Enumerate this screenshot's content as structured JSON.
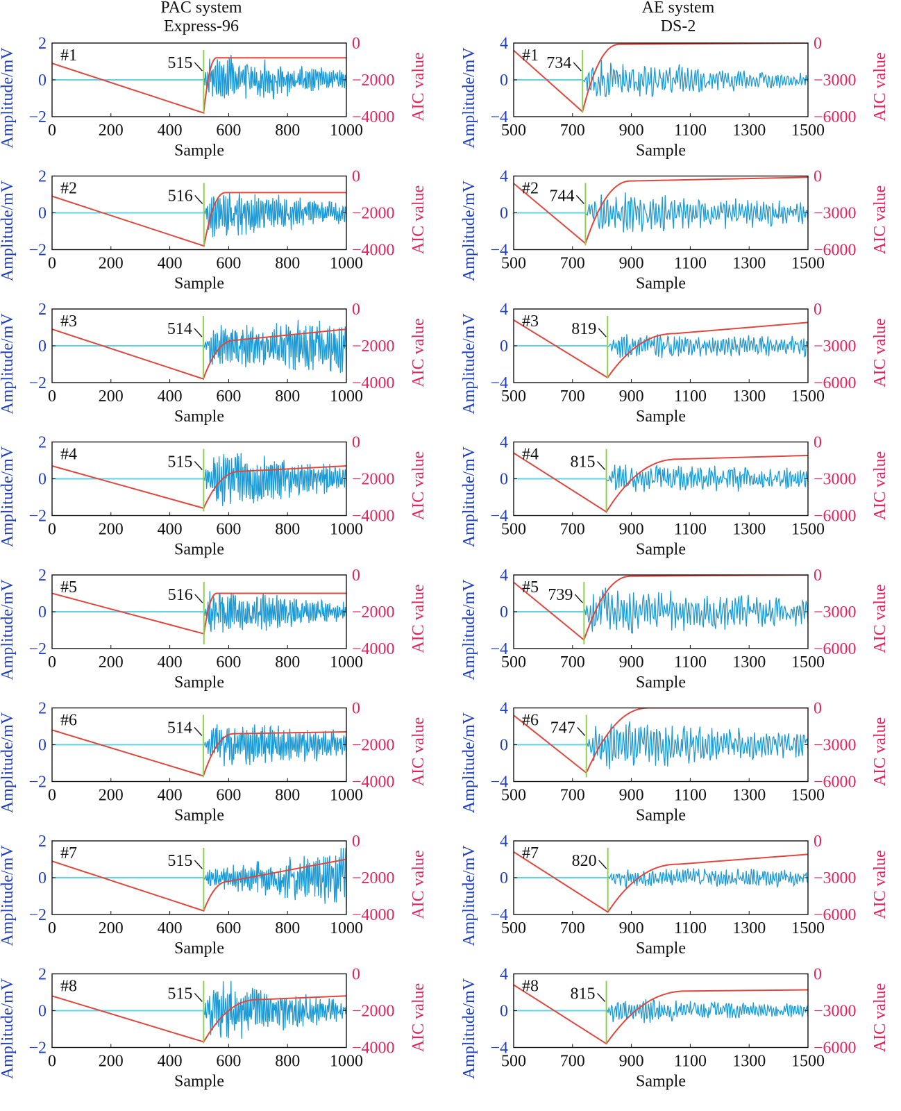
{
  "columns": [
    {
      "title_line1": "PAC system",
      "title_line2": "Express-96"
    },
    {
      "title_line1": "AE system",
      "title_line2": "DS-2"
    }
  ],
  "colors": {
    "signal": "#1b9ad6",
    "baseline": "#5fd3e6",
    "aic": "#e0463c",
    "marker": "#8fd14f",
    "left_axis": "#1f3fbf",
    "right_axis": "#e0245e"
  },
  "chart_data": [
    {
      "type": "line",
      "panel": "#1",
      "system": "PAC Express-96",
      "pick": 515,
      "pick_label": "515",
      "xlim": [
        0,
        1000
      ],
      "xticks": [
        0,
        200,
        400,
        600,
        800,
        1000
      ],
      "ylim": [
        -2,
        2
      ],
      "yticks": [
        -2,
        0,
        2
      ],
      "aic_ylim": [
        -4000,
        0
      ],
      "aic_ticks": [
        -4000,
        -2000,
        0
      ],
      "xlabel": "Sample",
      "ylabel": "Amplitude/mV",
      "ylabel2": "AIC value",
      "aic_start": -1100,
      "aic_min": -3800,
      "aic_plateau": -800,
      "aic_ramp_end": 560,
      "aic_plateau_end": -800,
      "signal_amp": 1.6,
      "signal_end_amp": 0.5
    },
    {
      "type": "line",
      "panel": "#1",
      "system": "AE DS-2",
      "pick": 734,
      "pick_label": "734",
      "xlim": [
        500,
        1500
      ],
      "xticks": [
        500,
        700,
        900,
        1100,
        1300,
        1500
      ],
      "ylim": [
        -4,
        4
      ],
      "yticks": [
        -4,
        0,
        4
      ],
      "aic_ylim": [
        -6000,
        0
      ],
      "aic_ticks": [
        -6000,
        -3000,
        0
      ],
      "xlabel": "Sample",
      "ylabel": "Amplitude/mV",
      "ylabel2": "AIC value",
      "aic_start": -600,
      "aic_min": -5600,
      "aic_plateau": -100,
      "aic_ramp_end": 860,
      "aic_plateau_end": 0,
      "signal_amp": 2.4,
      "signal_end_amp": 0.8
    },
    {
      "type": "line",
      "panel": "#2",
      "system": "PAC Express-96",
      "pick": 516,
      "pick_label": "516",
      "xlim": [
        0,
        1000
      ],
      "xticks": [
        0,
        200,
        400,
        600,
        800,
        1000
      ],
      "ylim": [
        -2,
        2
      ],
      "yticks": [
        -2,
        0,
        2
      ],
      "aic_ylim": [
        -4000,
        0
      ],
      "aic_ticks": [
        -4000,
        -2000,
        0
      ],
      "xlabel": "Sample",
      "ylabel": "Amplitude/mV",
      "ylabel2": "AIC value",
      "aic_start": -1100,
      "aic_min": -3800,
      "aic_plateau": -900,
      "aic_ramp_end": 590,
      "aic_plateau_end": -900,
      "signal_amp": 1.5,
      "signal_end_amp": 0.6
    },
    {
      "type": "line",
      "panel": "#2",
      "system": "AE DS-2",
      "pick": 744,
      "pick_label": "744",
      "xlim": [
        500,
        1500
      ],
      "xticks": [
        500,
        700,
        900,
        1100,
        1300,
        1500
      ],
      "ylim": [
        -4,
        4
      ],
      "yticks": [
        -4,
        0,
        4
      ],
      "aic_ylim": [
        -6000,
        0
      ],
      "aic_ticks": [
        -6000,
        -3000,
        0
      ],
      "xlabel": "Sample",
      "ylabel": "Amplitude/mV",
      "ylabel2": "AIC value",
      "aic_start": -600,
      "aic_min": -5500,
      "aic_plateau": -400,
      "aic_ramp_end": 900,
      "aic_plateau_end": -100,
      "signal_amp": 2.6,
      "signal_end_amp": 1.4
    },
    {
      "type": "line",
      "panel": "#3",
      "system": "PAC Express-96",
      "pick": 514,
      "pick_label": "514",
      "xlim": [
        0,
        1000
      ],
      "xticks": [
        0,
        200,
        400,
        600,
        800,
        1000
      ],
      "ylim": [
        -2,
        2
      ],
      "yticks": [
        -2,
        0,
        2
      ],
      "aic_ylim": [
        -4000,
        0
      ],
      "aic_ticks": [
        -4000,
        -2000,
        0
      ],
      "xlabel": "Sample",
      "ylabel": "Amplitude/mV",
      "ylabel2": "AIC value",
      "aic_start": -1100,
      "aic_min": -3800,
      "aic_plateau": -1700,
      "aic_ramp_end": 620,
      "aic_plateau_end": -1100,
      "signal_amp": 1.1,
      "signal_end_amp": 1.6
    },
    {
      "type": "line",
      "panel": "#3",
      "system": "AE DS-2",
      "pick": 819,
      "pick_label": "819",
      "xlim": [
        500,
        1500
      ],
      "xticks": [
        500,
        700,
        900,
        1100,
        1300,
        1500
      ],
      "ylim": [
        -4,
        4
      ],
      "yticks": [
        -4,
        0,
        4
      ],
      "aic_ylim": [
        -6000,
        0
      ],
      "aic_ticks": [
        -6000,
        -3000,
        0
      ],
      "xlabel": "Sample",
      "ylabel": "Amplitude/mV",
      "ylabel2": "AIC value",
      "aic_start": -900,
      "aic_min": -5600,
      "aic_plateau": -2000,
      "aic_ramp_end": 1050,
      "aic_plateau_end": -1100,
      "signal_amp": 1.6,
      "signal_end_amp": 1.2
    },
    {
      "type": "line",
      "panel": "#4",
      "system": "PAC Express-96",
      "pick": 515,
      "pick_label": "515",
      "xlim": [
        0,
        1000
      ],
      "xticks": [
        0,
        200,
        400,
        600,
        800,
        1000
      ],
      "ylim": [
        -2,
        2
      ],
      "yticks": [
        -2,
        0,
        2
      ],
      "aic_ylim": [
        -4000,
        0
      ],
      "aic_ticks": [
        -4000,
        -2000,
        0
      ],
      "xlabel": "Sample",
      "ylabel": "Amplitude/mV",
      "ylabel2": "AIC value",
      "aic_start": -1300,
      "aic_min": -3600,
      "aic_plateau": -1600,
      "aic_ramp_end": 640,
      "aic_plateau_end": -1300,
      "signal_amp": 1.8,
      "signal_end_amp": 0.7
    },
    {
      "type": "line",
      "panel": "#4",
      "system": "AE DS-2",
      "pick": 815,
      "pick_label": "815",
      "xlim": [
        500,
        1500
      ],
      "xticks": [
        500,
        700,
        900,
        1100,
        1300,
        1500
      ],
      "ylim": [
        -4,
        4
      ],
      "yticks": [
        -4,
        0,
        4
      ],
      "aic_ylim": [
        -6000,
        0
      ],
      "aic_ticks": [
        -6000,
        -3000,
        0
      ],
      "xlabel": "Sample",
      "ylabel": "Amplitude/mV",
      "ylabel2": "AIC value",
      "aic_start": -900,
      "aic_min": -5700,
      "aic_plateau": -1400,
      "aic_ramp_end": 1060,
      "aic_plateau_end": -1100,
      "signal_amp": 1.8,
      "signal_end_amp": 1.2
    },
    {
      "type": "line",
      "panel": "#5",
      "system": "PAC Express-96",
      "pick": 516,
      "pick_label": "516",
      "xlim": [
        0,
        1000
      ],
      "xticks": [
        0,
        200,
        400,
        600,
        800,
        1000
      ],
      "ylim": [
        -2,
        2
      ],
      "yticks": [
        -2,
        0,
        2
      ],
      "aic_ylim": [
        -4000,
        0
      ],
      "aic_ticks": [
        -4000,
        -2000,
        0
      ],
      "xlabel": "Sample",
      "ylabel": "Amplitude/mV",
      "ylabel2": "AIC value",
      "aic_start": -1000,
      "aic_min": -3200,
      "aic_plateau": -1000,
      "aic_ramp_end": 560,
      "aic_plateau_end": -1000,
      "signal_amp": 1.4,
      "signal_end_amp": 0.6
    },
    {
      "type": "line",
      "panel": "#5",
      "system": "AE DS-2",
      "pick": 739,
      "pick_label": "739",
      "xlim": [
        500,
        1500
      ],
      "xticks": [
        500,
        700,
        900,
        1100,
        1300,
        1500
      ],
      "ylim": [
        -4,
        4
      ],
      "yticks": [
        -4,
        0,
        4
      ],
      "aic_ylim": [
        -6000,
        0
      ],
      "aic_ticks": [
        -6000,
        -3000,
        0
      ],
      "xlabel": "Sample",
      "ylabel": "Amplitude/mV",
      "ylabel2": "AIC value",
      "aic_start": -600,
      "aic_min": -5300,
      "aic_plateau": -100,
      "aic_ramp_end": 900,
      "aic_plateau_end": 0,
      "signal_amp": 2.8,
      "signal_end_amp": 1.6
    },
    {
      "type": "line",
      "panel": "#6",
      "system": "PAC Express-96",
      "pick": 514,
      "pick_label": "514",
      "xlim": [
        0,
        1000
      ],
      "xticks": [
        0,
        200,
        400,
        600,
        800,
        1000
      ],
      "ylim": [
        -2,
        2
      ],
      "yticks": [
        -2,
        0,
        2
      ],
      "aic_ylim": [
        -4000,
        0
      ],
      "aic_ticks": [
        -4000,
        -2000,
        0
      ],
      "xlabel": "Sample",
      "ylabel": "Amplitude/mV",
      "ylabel2": "AIC value",
      "aic_start": -1200,
      "aic_min": -3700,
      "aic_plateau": -1400,
      "aic_ramp_end": 620,
      "aic_plateau_end": -1300,
      "signal_amp": 1.4,
      "signal_end_amp": 0.8
    },
    {
      "type": "line",
      "panel": "#6",
      "system": "AE DS-2",
      "pick": 747,
      "pick_label": "747",
      "xlim": [
        500,
        1500
      ],
      "xticks": [
        500,
        700,
        900,
        1100,
        1300,
        1500
      ],
      "ylim": [
        -4,
        4
      ],
      "yticks": [
        -4,
        0,
        4
      ],
      "aic_ylim": [
        -6000,
        0
      ],
      "aic_ticks": [
        -6000,
        -3000,
        0
      ],
      "xlabel": "Sample",
      "ylabel": "Amplitude/mV",
      "ylabel2": "AIC value",
      "aic_start": -600,
      "aic_min": -5300,
      "aic_plateau": 0,
      "aic_ramp_end": 960,
      "aic_plateau_end": 0,
      "signal_amp": 3.0,
      "signal_end_amp": 1.4
    },
    {
      "type": "line",
      "panel": "#7",
      "system": "PAC Express-96",
      "pick": 515,
      "pick_label": "515",
      "xlim": [
        0,
        1000
      ],
      "xticks": [
        0,
        200,
        400,
        600,
        800,
        1000
      ],
      "ylim": [
        -2,
        2
      ],
      "yticks": [
        -2,
        0,
        2
      ],
      "aic_ylim": [
        -4000,
        0
      ],
      "aic_ticks": [
        -4000,
        -2000,
        0
      ],
      "xlabel": "Sample",
      "ylabel": "Amplitude/mV",
      "ylabel2": "AIC value",
      "aic_start": -1100,
      "aic_min": -3800,
      "aic_plateau": -2200,
      "aic_ramp_end": 600,
      "aic_plateau_end": -1000,
      "signal_amp": 0.5,
      "signal_end_amp": 1.7
    },
    {
      "type": "line",
      "panel": "#7",
      "system": "AE DS-2",
      "pick": 820,
      "pick_label": "820",
      "xlim": [
        500,
        1500
      ],
      "xticks": [
        500,
        700,
        900,
        1100,
        1300,
        1500
      ],
      "ylim": [
        -4,
        4
      ],
      "yticks": [
        -4,
        0,
        4
      ],
      "aic_ylim": [
        -6000,
        0
      ],
      "aic_ticks": [
        -6000,
        -3000,
        0
      ],
      "xlabel": "Sample",
      "ylabel": "Amplitude/mV",
      "ylabel2": "AIC value",
      "aic_start": -900,
      "aic_min": -5800,
      "aic_plateau": -1900,
      "aic_ramp_end": 1060,
      "aic_plateau_end": -1100,
      "signal_amp": 1.2,
      "signal_end_amp": 1.0
    },
    {
      "type": "line",
      "panel": "#8",
      "system": "PAC Express-96",
      "pick": 515,
      "pick_label": "515",
      "xlim": [
        0,
        1000
      ],
      "xticks": [
        0,
        200,
        400,
        600,
        800,
        1000
      ],
      "ylim": [
        -2,
        2
      ],
      "yticks": [
        -2,
        0,
        2
      ],
      "aic_ylim": [
        -4000,
        0
      ],
      "aic_ticks": [
        -4000,
        -2000,
        0
      ],
      "xlabel": "Sample",
      "ylabel": "Amplitude/mV",
      "ylabel2": "AIC value",
      "aic_start": -1200,
      "aic_min": -3700,
      "aic_plateau": -1400,
      "aic_ramp_end": 700,
      "aic_plateau_end": -1200,
      "signal_amp": 1.9,
      "signal_end_amp": 0.6
    },
    {
      "type": "line",
      "panel": "#8",
      "system": "AE DS-2",
      "pick": 815,
      "pick_label": "815",
      "xlim": [
        500,
        1500
      ],
      "xticks": [
        500,
        700,
        900,
        1100,
        1300,
        1500
      ],
      "ylim": [
        -4,
        4
      ],
      "yticks": [
        -4,
        0,
        4
      ],
      "aic_ylim": [
        -6000,
        0
      ],
      "aic_ticks": [
        -6000,
        -3000,
        0
      ],
      "xlabel": "Sample",
      "ylabel": "Amplitude/mV",
      "ylabel2": "AIC value",
      "aic_start": -900,
      "aic_min": -5700,
      "aic_plateau": -1400,
      "aic_ramp_end": 1090,
      "aic_plateau_end": -1300,
      "signal_amp": 1.6,
      "signal_end_amp": 0.8
    }
  ]
}
